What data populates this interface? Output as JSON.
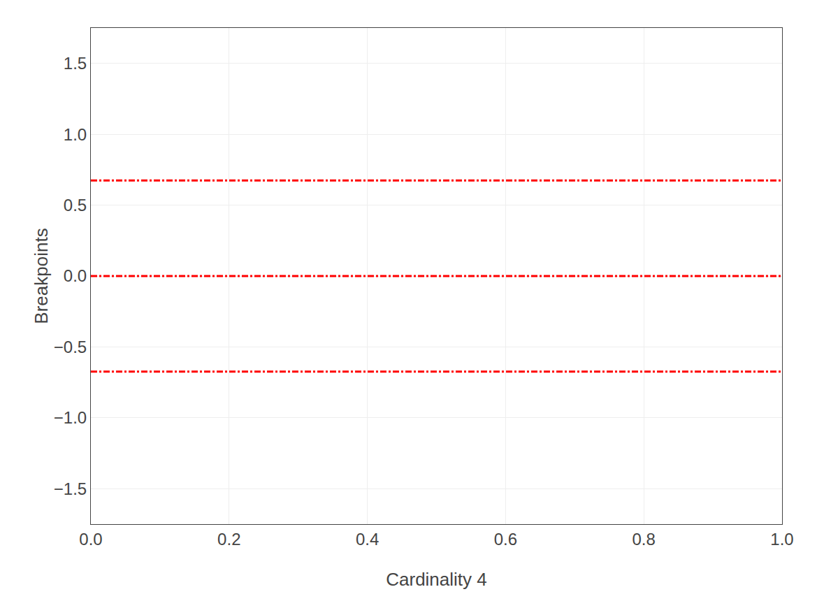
{
  "chart_data": {
    "type": "line",
    "xlabel": "Cardinality 4",
    "ylabel": "Breakpoints",
    "x": [
      0.0,
      1.0
    ],
    "series": [
      {
        "color": "#FF0000",
        "line_style": "dashdot",
        "values": [
          0.6745,
          0.6745
        ]
      },
      {
        "color": "#FF0000",
        "line_style": "dashdot",
        "values": [
          0.0,
          0.0
        ]
      },
      {
        "color": "#FF0000",
        "line_style": "dashdot",
        "values": [
          -0.6745,
          -0.6745
        ]
      }
    ],
    "xlim": [
      0.0,
      1.0
    ],
    "ylim": [
      -1.75,
      1.75
    ],
    "xticks": [
      {
        "value": 0.0,
        "label": "0.0"
      },
      0.2,
      0.4,
      0.6,
      0.8,
      {
        "value": 1.0,
        "label": "1.0"
      }
    ],
    "yticks": [
      {
        "value": -1.5,
        "label": "−1.5"
      },
      {
        "value": -1.0,
        "label": "−1.0"
      },
      {
        "value": -0.5,
        "label": "−0.5"
      },
      {
        "value": 0.0,
        "label": "0.0"
      },
      0.5,
      {
        "value": 1.0,
        "label": "1.0"
      },
      1.5
    ],
    "grid": true
  }
}
